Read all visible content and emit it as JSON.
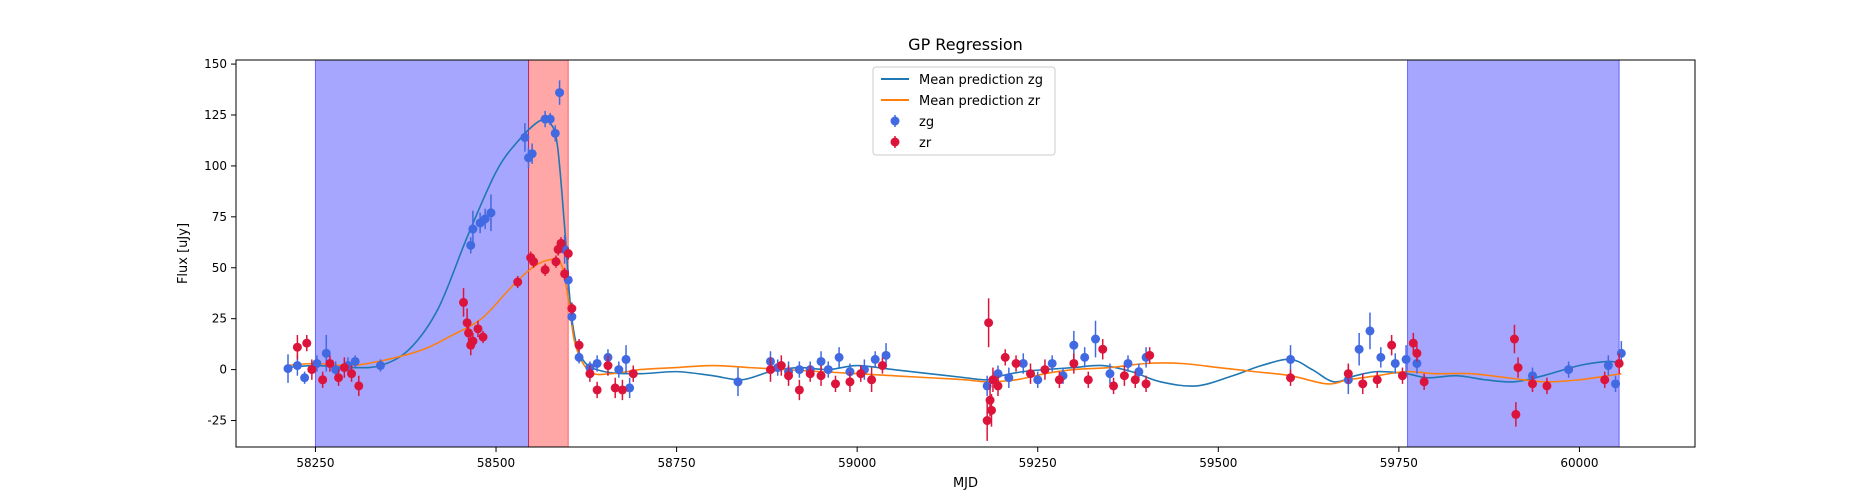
{
  "chart_data": {
    "type": "scatter",
    "title": "GP Regression",
    "xlabel": "MJD",
    "ylabel": "Flux [uJy]",
    "xlim": [
      58140,
      60160
    ],
    "ylim": [
      -38,
      152
    ],
    "xticks": [
      58250,
      58500,
      58750,
      59000,
      59250,
      59500,
      59750,
      60000
    ],
    "yticks": [
      -25,
      0,
      25,
      50,
      75,
      100,
      125,
      150
    ],
    "grid": false,
    "legend_position": "upper center",
    "colors": {
      "zg_line": "#1f77b4",
      "zr_line": "#ff7f0e",
      "zg_points": "#4169e1",
      "zr_points": "#dc143c",
      "blue_band": "#0000ff",
      "red_band": "#ff0000"
    },
    "shaded_regions": [
      {
        "color": "blue",
        "x0": 58250,
        "x1": 58545
      },
      {
        "color": "red",
        "x0": 58545,
        "x1": 58600
      },
      {
        "color": "blue",
        "x0": 59762,
        "x1": 60055
      }
    ],
    "series": [
      {
        "name": "Mean prediction zg",
        "kind": "line",
        "x": [
          58210,
          58250,
          58300,
          58340,
          58380,
          58420,
          58460,
          58500,
          58530,
          58560,
          58575,
          58585,
          58595,
          58605,
          58620,
          58650,
          58700,
          58750,
          58800,
          58840,
          58880,
          58920,
          58960,
          59000,
          59050,
          59100,
          59150,
          59180,
          59200,
          59230,
          59260,
          59300,
          59340,
          59380,
          59420,
          59470,
          59520,
          59560,
          59600,
          59630,
          59660,
          59690,
          59720,
          59760,
          59790,
          59830,
          59870,
          59910,
          59950,
          60000,
          60040,
          60058
        ],
        "y": [
          1,
          2,
          1,
          2,
          10,
          30,
          65,
          97,
          112,
          122,
          121,
          110,
          70,
          25,
          5,
          -1,
          -2,
          -1,
          -3,
          -5,
          -1,
          1,
          0,
          2,
          0,
          -2,
          -4,
          -5,
          -3,
          -1,
          0,
          1,
          2,
          -1,
          -6,
          -8,
          -3,
          2,
          5,
          0,
          -6,
          -3,
          -1,
          -2,
          -4,
          -3,
          -5,
          -6,
          -3,
          2,
          4,
          3
        ]
      },
      {
        "name": "Mean prediction zr",
        "kind": "line",
        "x": [
          58210,
          58250,
          58300,
          58350,
          58400,
          58440,
          58480,
          58520,
          58550,
          58575,
          58590,
          58600,
          58610,
          58630,
          58660,
          58700,
          58750,
          58800,
          58850,
          58900,
          58950,
          59000,
          59050,
          59100,
          59150,
          59180,
          59220,
          59260,
          59300,
          59350,
          59400,
          59450,
          59500,
          59550,
          59600,
          59650,
          59680,
          59720,
          59760,
          59800,
          59850,
          59900,
          59950,
          60000,
          60040,
          60058
        ],
        "y": [
          2,
          3,
          2,
          5,
          10,
          17,
          25,
          40,
          50,
          54,
          52,
          35,
          12,
          -1,
          -2,
          0,
          1,
          2,
          1,
          0,
          -1,
          -2,
          -3,
          -4,
          -5,
          -6,
          -5,
          -2,
          0,
          1,
          3,
          3,
          1,
          -1,
          -3,
          -7,
          -5,
          -3,
          -1,
          -2,
          -2,
          -4,
          -6,
          -5,
          -3,
          -2
        ]
      },
      {
        "name": "zg",
        "kind": "errorbar",
        "points": [
          [
            58212,
            0.5,
            7
          ],
          [
            58225,
            2,
            5
          ],
          [
            58235,
            -4,
            3
          ],
          [
            58252,
            3,
            4
          ],
          [
            58265,
            8,
            9
          ],
          [
            58278,
            0,
            4
          ],
          [
            58295,
            2,
            4
          ],
          [
            58305,
            4,
            3
          ],
          [
            58340,
            2,
            3
          ],
          [
            58465,
            61,
            4
          ],
          [
            58468,
            69,
            9
          ],
          [
            58478,
            72,
            5
          ],
          [
            58485,
            74,
            5
          ],
          [
            58493,
            77,
            9
          ],
          [
            58540,
            114,
            7
          ],
          [
            58545,
            104,
            5
          ],
          [
            58550,
            106,
            5
          ],
          [
            58568,
            123,
            4
          ],
          [
            58575,
            123,
            3
          ],
          [
            58582,
            116,
            4
          ],
          [
            58588,
            136,
            6
          ],
          [
            58595,
            59,
            7
          ],
          [
            58600,
            44,
            5
          ],
          [
            58605,
            26,
            4
          ],
          [
            58615,
            6,
            3
          ],
          [
            58630,
            1,
            3
          ],
          [
            58640,
            3,
            4
          ],
          [
            58655,
            6,
            4
          ],
          [
            58670,
            0,
            4
          ],
          [
            58680,
            5,
            7
          ],
          [
            58685,
            -9,
            5
          ],
          [
            58835,
            -6,
            7
          ],
          [
            58880,
            4,
            5
          ],
          [
            58890,
            1,
            4
          ],
          [
            58905,
            -1,
            5
          ],
          [
            58920,
            0,
            4
          ],
          [
            58935,
            0,
            4
          ],
          [
            58950,
            4,
            5
          ],
          [
            58960,
            0,
            4
          ],
          [
            58975,
            6,
            5
          ],
          [
            58990,
            -1,
            4
          ],
          [
            59010,
            0,
            5
          ],
          [
            59025,
            5,
            4
          ],
          [
            59040,
            7,
            6
          ],
          [
            59180,
            -8,
            5
          ],
          [
            59195,
            -2,
            4
          ],
          [
            59210,
            -4,
            5
          ],
          [
            59230,
            3,
            5
          ],
          [
            59250,
            -5,
            4
          ],
          [
            59270,
            3,
            4
          ],
          [
            59285,
            -3,
            4
          ],
          [
            59300,
            12,
            7
          ],
          [
            59315,
            6,
            5
          ],
          [
            59330,
            15,
            9
          ],
          [
            59350,
            -2,
            5
          ],
          [
            59375,
            3,
            4
          ],
          [
            59390,
            -1,
            4
          ],
          [
            59400,
            6,
            5
          ],
          [
            59600,
            5,
            7
          ],
          [
            59680,
            -5,
            7
          ],
          [
            59695,
            10,
            8
          ],
          [
            59710,
            19,
            9
          ],
          [
            59725,
            6,
            5
          ],
          [
            59745,
            3,
            5
          ],
          [
            59760,
            5,
            7
          ],
          [
            59775,
            3,
            5
          ],
          [
            59935,
            -3,
            4
          ],
          [
            59985,
            0,
            4
          ],
          [
            60040,
            2,
            5
          ],
          [
            60050,
            -7,
            4
          ],
          [
            60058,
            8,
            6
          ]
        ]
      },
      {
        "name": "zr",
        "kind": "errorbar",
        "points": [
          [
            58225,
            11,
            6
          ],
          [
            58238,
            13,
            4
          ],
          [
            58245,
            0,
            5
          ],
          [
            58260,
            -5,
            4
          ],
          [
            58270,
            3,
            4
          ],
          [
            58282,
            -4,
            4
          ],
          [
            58290,
            1,
            5
          ],
          [
            58300,
            -2,
            4
          ],
          [
            58310,
            -8,
            5
          ],
          [
            58455,
            33,
            7
          ],
          [
            58460,
            23,
            7
          ],
          [
            58462,
            18,
            5
          ],
          [
            58465,
            12,
            5
          ],
          [
            58468,
            14,
            4
          ],
          [
            58475,
            20,
            4
          ],
          [
            58482,
            16,
            3
          ],
          [
            58530,
            43,
            3
          ],
          [
            58548,
            55,
            3
          ],
          [
            58552,
            53,
            3
          ],
          [
            58568,
            49,
            3
          ],
          [
            58583,
            53,
            3
          ],
          [
            58586,
            59,
            3
          ],
          [
            58590,
            62,
            3
          ],
          [
            58595,
            47,
            3
          ],
          [
            58600,
            57,
            3
          ],
          [
            58605,
            30,
            3
          ],
          [
            58615,
            12,
            3
          ],
          [
            58630,
            -2,
            4
          ],
          [
            58640,
            -10,
            4
          ],
          [
            58655,
            2,
            5
          ],
          [
            58665,
            -9,
            5
          ],
          [
            58675,
            -10,
            5
          ],
          [
            58690,
            -2,
            4
          ],
          [
            58880,
            0,
            6
          ],
          [
            58895,
            2,
            5
          ],
          [
            58905,
            -3,
            5
          ],
          [
            58920,
            -10,
            5
          ],
          [
            58935,
            -2,
            4
          ],
          [
            58950,
            -3,
            5
          ],
          [
            58970,
            -7,
            4
          ],
          [
            58990,
            -6,
            5
          ],
          [
            59005,
            -2,
            4
          ],
          [
            59020,
            -5,
            6
          ],
          [
            59035,
            2,
            4
          ],
          [
            59180,
            -25,
            10
          ],
          [
            59182,
            23,
            12
          ],
          [
            59184,
            -15,
            8
          ],
          [
            59186,
            -20,
            8
          ],
          [
            59188,
            -5,
            6
          ],
          [
            59195,
            -8,
            5
          ],
          [
            59205,
            6,
            4
          ],
          [
            59220,
            3,
            4
          ],
          [
            59240,
            -2,
            5
          ],
          [
            59260,
            0,
            5
          ],
          [
            59280,
            -5,
            4
          ],
          [
            59300,
            3,
            5
          ],
          [
            59320,
            -5,
            4
          ],
          [
            59340,
            10,
            5
          ],
          [
            59355,
            -8,
            4
          ],
          [
            59370,
            -3,
            5
          ],
          [
            59385,
            -5,
            4
          ],
          [
            59400,
            -7,
            4
          ],
          [
            59405,
            7,
            4
          ],
          [
            59600,
            -4,
            4
          ],
          [
            59680,
            -2,
            5
          ],
          [
            59700,
            -7,
            5
          ],
          [
            59720,
            -5,
            4
          ],
          [
            59740,
            12,
            5
          ],
          [
            59755,
            -3,
            4
          ],
          [
            59770,
            13,
            5
          ],
          [
            59775,
            8,
            4
          ],
          [
            59785,
            -6,
            4
          ],
          [
            59910,
            15,
            7
          ],
          [
            59912,
            -22,
            6
          ],
          [
            59915,
            1,
            5
          ],
          [
            59935,
            -7,
            4
          ],
          [
            59955,
            -8,
            4
          ],
          [
            60035,
            -5,
            4
          ],
          [
            60055,
            3,
            5
          ]
        ]
      }
    ]
  }
}
